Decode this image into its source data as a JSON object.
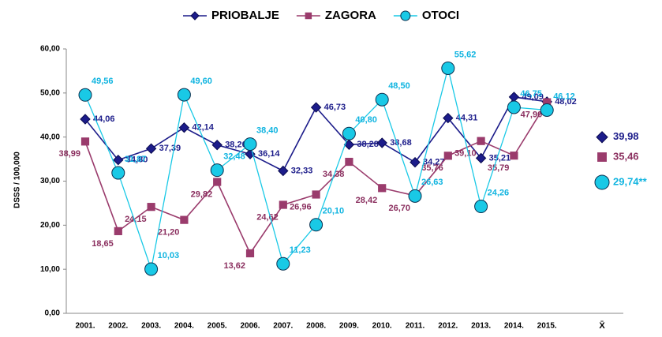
{
  "chart_data": {
    "type": "line",
    "y_label": "DSSS / 100,000",
    "categories": [
      "2001.",
      "2002.",
      "2003.",
      "2004.",
      "2005.",
      "2006.",
      "2007.",
      "2008.",
      "2009.",
      "2010.",
      "2011.",
      "2012.",
      "2013.",
      "2014.",
      "2015."
    ],
    "series": [
      {
        "name": "PRIOBALJE",
        "color": "#1c1c8a",
        "marker": "diamond",
        "values": [
          44.06,
          34.8,
          37.39,
          42.14,
          38.2,
          36.14,
          32.33,
          46.73,
          38.28,
          38.68,
          34.27,
          44.31,
          35.21,
          49.09,
          48.02
        ],
        "value_labels": [
          "44,06",
          "34,80",
          "37,39",
          "42,14",
          "38,20",
          "36,14",
          "32,33",
          "46,73",
          "38,28",
          "38,68",
          "34,27",
          "44,31",
          "35,21",
          "49,09",
          "48,02"
        ]
      },
      {
        "name": "ZAGORA",
        "color": "#9a3b6c",
        "marker": "square",
        "values": [
          38.99,
          18.65,
          24.15,
          21.2,
          29.82,
          13.62,
          24.62,
          26.96,
          34.38,
          28.42,
          26.7,
          35.76,
          39.1,
          35.79,
          47.9
        ],
        "value_labels": [
          "38,99",
          "18,65",
          "24,15",
          "21,20",
          "29,82",
          "13,62",
          "24,62",
          "26,96",
          "34,38",
          "28,42",
          "26,70",
          "35,76",
          "39,10",
          "35,79",
          "47,90"
        ]
      },
      {
        "name": "OTOCI",
        "color": "#19c9e6",
        "marker": "circle",
        "values": [
          49.56,
          31.87,
          10.03,
          49.6,
          32.48,
          38.4,
          11.23,
          20.1,
          40.8,
          48.5,
          26.63,
          55.62,
          24.26,
          46.75,
          46.12
        ],
        "value_labels": [
          "49,56",
          "31,87",
          "10,03",
          "49,60",
          "32,48",
          "38,40",
          "11,23",
          "20,10",
          "40,80",
          "48,50",
          "26,63",
          "55,62",
          "24,26",
          "46,75",
          "46,12"
        ]
      }
    ],
    "mean": {
      "label": "X̄",
      "values": [
        39.98,
        35.46,
        29.74
      ],
      "value_labels": [
        "39,98",
        "35,46",
        "29,74**"
      ]
    },
    "ylim": [
      0,
      60
    ],
    "yticks": [
      {
        "value": 0,
        "label": "0,00"
      },
      {
        "value": 10,
        "label": "10,00"
      },
      {
        "value": 20,
        "label": "20,00"
      },
      {
        "value": 30,
        "label": "30,00"
      },
      {
        "value": 40,
        "label": "40,00"
      },
      {
        "value": 50,
        "label": "50,00"
      },
      {
        "value": 60,
        "label": "60,00"
      }
    ]
  }
}
